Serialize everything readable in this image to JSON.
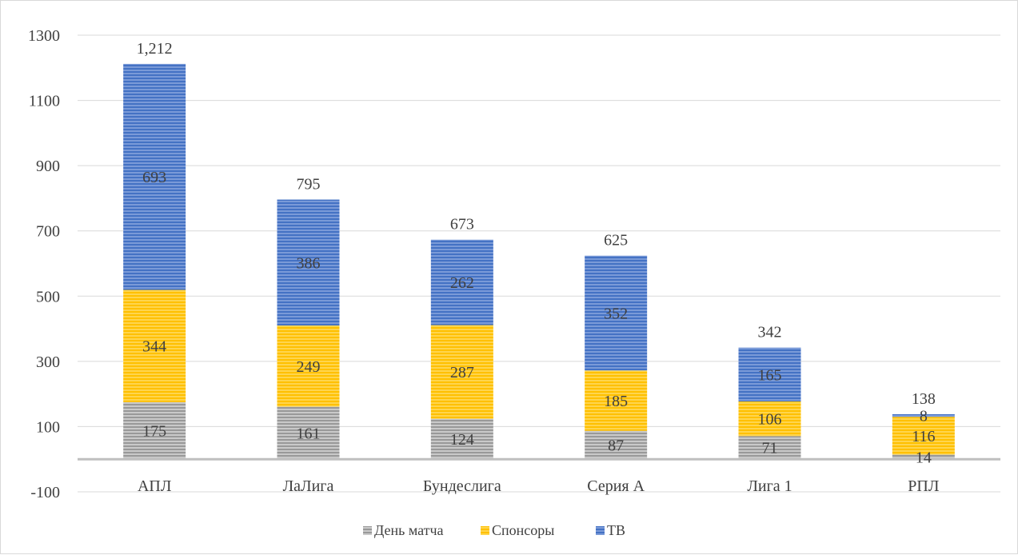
{
  "chart_data": {
    "type": "bar",
    "stacked": true,
    "categories": [
      "АПЛ",
      "ЛаЛига",
      "Бундеслига",
      "Серия А",
      "Лига 1",
      "РПЛ"
    ],
    "series": [
      {
        "name": "День матча",
        "values": [
          175,
          161,
          124,
          87,
          71,
          14
        ],
        "color": "#a5a5a5"
      },
      {
        "name": "Спонсоры",
        "values": [
          344,
          249,
          287,
          185,
          106,
          116
        ],
        "color": "#ffc000"
      },
      {
        "name": "ТВ",
        "values": [
          693,
          386,
          262,
          352,
          165,
          8
        ],
        "color": "#4472c4"
      }
    ],
    "totals": [
      "1,212",
      "795",
      "673",
      "625",
      "342",
      "138"
    ],
    "y_ticks": [
      "1300",
      "1100",
      "900",
      "700",
      "500",
      "300",
      "100",
      "-100"
    ],
    "ylim": [
      -100,
      1300
    ],
    "y_step": 200,
    "grid": true,
    "legend_position": "bottom",
    "title": "",
    "xlabel": "",
    "ylabel": ""
  }
}
